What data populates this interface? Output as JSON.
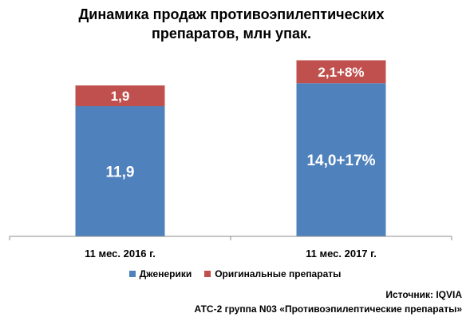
{
  "chart_data": {
    "type": "bar",
    "stacked": true,
    "title_line1": "Динамика продаж противоэпилептических",
    "title_line2": "препаратов, млн упак.",
    "categories": [
      "11 мес. 2016 г.",
      "11 мес. 2017 г."
    ],
    "series": [
      {
        "name": "Дженерики",
        "values": [
          11.9,
          14.0
        ],
        "labels": [
          "11,9",
          "14,0+17%"
        ],
        "color": "#4f81bd"
      },
      {
        "name": "Оригинальные препараты",
        "values": [
          1.9,
          2.1
        ],
        "labels": [
          "1,9",
          "2,1+8%"
        ],
        "color": "#c0504d"
      }
    ],
    "ylim": [
      0,
      16.5
    ],
    "grid": false,
    "legend_position": "bottom"
  },
  "footer": {
    "source": "Источник: IQVIA",
    "atc": "АТС-2 группа N03 «Противоэпилептические препараты»"
  }
}
